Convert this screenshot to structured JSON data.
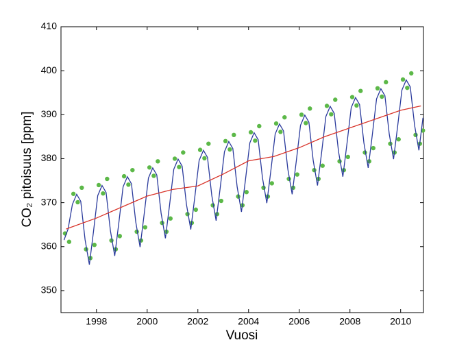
{
  "chart_data": {
    "type": "scatter",
    "xlabel": "Vuosi",
    "ylabel": "CO₂ pitoisuus [ppm]",
    "xlim": [
      1996.6,
      2010.9
    ],
    "xticks": [
      1998,
      2000,
      2002,
      2004,
      2006,
      2008,
      2010
    ],
    "ylim": [
      345,
      410
    ],
    "yticks": [
      350,
      360,
      370,
      380,
      390,
      400,
      410
    ],
    "series": [
      {
        "type": "scatter",
        "color": "#5cb848",
        "x": [
          1996.76,
          1996.92,
          1997.09,
          1997.26,
          1997.42,
          1997.59,
          1997.76,
          1997.92,
          1998.09,
          1998.26,
          1998.42,
          1998.59,
          1998.76,
          1998.92,
          1999.09,
          1999.26,
          1999.42,
          1999.59,
          1999.76,
          1999.92,
          2000.09,
          2000.26,
          2000.42,
          2000.59,
          2000.76,
          2000.92,
          2001.09,
          2001.26,
          2001.42,
          2001.59,
          2001.76,
          2001.92,
          2002.09,
          2002.26,
          2002.42,
          2002.59,
          2002.76,
          2002.92,
          2003.09,
          2003.26,
          2003.42,
          2003.59,
          2003.76,
          2003.92,
          2004.09,
          2004.26,
          2004.42,
          2004.59,
          2004.76,
          2004.92,
          2005.09,
          2005.26,
          2005.42,
          2005.59,
          2005.76,
          2005.92,
          2006.09,
          2006.26,
          2006.42,
          2006.59,
          2006.76,
          2006.92,
          2007.09,
          2007.26,
          2007.42,
          2007.59,
          2007.76,
          2007.92,
          2008.09,
          2008.26,
          2008.42,
          2008.59,
          2008.76,
          2008.92,
          2009.09,
          2009.26,
          2009.42,
          2009.59,
          2009.76,
          2009.92,
          2010.09,
          2010.26,
          2010.42,
          2010.59,
          2010.76,
          2010.88
        ],
        "values": [
          363.0,
          361.1,
          372.0,
          370.1,
          373.4,
          359.4,
          357.4,
          360.4,
          374.0,
          372.1,
          375.4,
          361.4,
          359.4,
          362.4,
          376.0,
          374.1,
          377.4,
          363.4,
          361.4,
          364.4,
          378.0,
          376.1,
          379.4,
          365.4,
          363.4,
          366.4,
          380.0,
          378.1,
          381.4,
          367.4,
          365.4,
          368.4,
          382.0,
          380.1,
          383.4,
          369.4,
          367.4,
          370.4,
          384.0,
          382.1,
          385.4,
          371.4,
          369.4,
          372.4,
          386.0,
          384.1,
          387.4,
          373.4,
          371.4,
          374.4,
          388.0,
          386.1,
          389.4,
          375.4,
          373.4,
          376.4,
          390.0,
          388.1,
          391.4,
          377.4,
          375.4,
          378.4,
          392.0,
          390.1,
          393.4,
          379.4,
          377.4,
          380.4,
          394.0,
          392.1,
          395.4,
          381.4,
          379.4,
          382.4,
          396.0,
          394.1,
          397.4,
          383.4,
          381.4,
          384.4,
          398.0,
          396.1,
          399.4,
          385.4,
          383.4,
          386.4
        ]
      },
      {
        "type": "line",
        "color": "#2a3a9c",
        "x": [
          1996.72,
          1996.88,
          1997.05,
          1997.22,
          1997.38,
          1997.55,
          1997.72,
          1997.88,
          1998.05,
          1998.22,
          1998.38,
          1998.55,
          1998.72,
          1998.88,
          1999.05,
          1999.22,
          1999.38,
          1999.55,
          1999.72,
          1999.88,
          2000.05,
          2000.22,
          2000.38,
          2000.55,
          2000.72,
          2000.88,
          2001.05,
          2001.22,
          2001.38,
          2001.55,
          2001.72,
          2001.88,
          2002.05,
          2002.22,
          2002.38,
          2002.55,
          2002.72,
          2002.88,
          2003.05,
          2003.22,
          2003.38,
          2003.55,
          2003.72,
          2003.88,
          2004.05,
          2004.22,
          2004.38,
          2004.55,
          2004.72,
          2004.88,
          2005.05,
          2005.22,
          2005.38,
          2005.55,
          2005.72,
          2005.88,
          2006.05,
          2006.22,
          2006.38,
          2006.55,
          2006.72,
          2006.88,
          2007.05,
          2007.22,
          2007.38,
          2007.55,
          2007.72,
          2007.88,
          2008.05,
          2008.22,
          2008.38,
          2008.55,
          2008.72,
          2008.88,
          2009.05,
          2009.22,
          2009.38,
          2009.55,
          2009.72,
          2009.88,
          2010.05,
          2010.22,
          2010.38,
          2010.55,
          2010.72,
          2010.88
        ],
        "values": [
          361.5,
          364.0,
          369.6,
          371.9,
          370.3,
          361.6,
          355.9,
          363.3,
          371.6,
          373.9,
          372.3,
          363.6,
          357.9,
          365.3,
          373.6,
          375.9,
          374.3,
          365.6,
          359.9,
          367.3,
          375.6,
          377.9,
          376.3,
          367.6,
          361.9,
          369.3,
          377.6,
          379.9,
          378.3,
          369.6,
          363.9,
          371.3,
          379.6,
          381.9,
          380.3,
          371.6,
          365.9,
          373.3,
          381.6,
          383.9,
          382.3,
          373.6,
          367.9,
          375.3,
          383.6,
          385.9,
          384.3,
          375.6,
          369.9,
          377.3,
          385.6,
          387.9,
          386.3,
          377.6,
          371.9,
          379.3,
          387.6,
          389.9,
          388.3,
          379.6,
          373.9,
          381.3,
          389.6,
          391.9,
          390.3,
          381.6,
          375.9,
          383.3,
          391.6,
          393.9,
          392.3,
          383.6,
          377.9,
          385.3,
          393.6,
          395.9,
          394.3,
          385.6,
          379.9,
          387.3,
          395.6,
          397.9,
          396.3,
          387.6,
          381.9,
          389.3
        ]
      },
      {
        "type": "line",
        "color": "#d8342a",
        "x": [
          1996.8,
          1998,
          1999,
          2000,
          2001,
          2002,
          2003,
          2004,
          2005,
          2006,
          2007,
          2008,
          2009,
          2010,
          2010.8
        ],
        "values": [
          364,
          366.5,
          369,
          371.5,
          373,
          373.8,
          376.5,
          379.5,
          380.5,
          382.5,
          385,
          387,
          389,
          391,
          392
        ]
      }
    ]
  }
}
